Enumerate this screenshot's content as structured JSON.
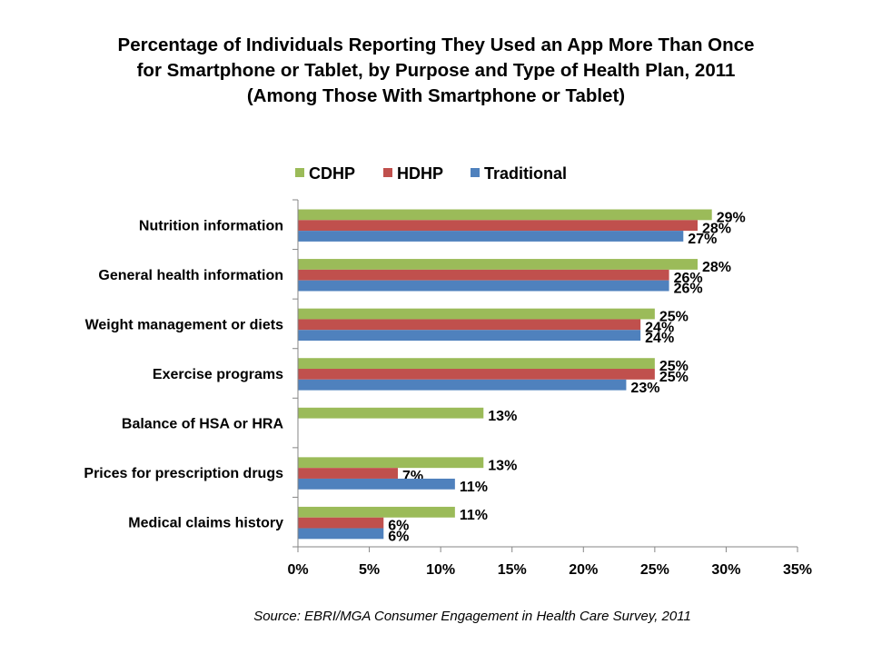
{
  "title_lines": [
    "Percentage of Individuals Reporting They Used an App More Than Once",
    "for Smartphone or Tablet, by Purpose and Type of Health Plan, 2011",
    "(Among Those With Smartphone or Tablet)"
  ],
  "source": "Source: EBRI/MGA Consumer Engagement in Health Care Survey, 2011",
  "colors": {
    "CDHP": "#9bbb59",
    "HDHP": "#c0504d",
    "Traditional": "#4f81bd"
  },
  "chart_data": {
    "type": "bar",
    "orientation": "horizontal",
    "title": "Percentage of Individuals Reporting They Used an App More Than Once for Smartphone or Tablet, by Purpose and Type of Health Plan, 2011 (Among Those With Smartphone or Tablet)",
    "categories": [
      "Nutrition information",
      "General health information",
      "Weight management or diets",
      "Exercise programs",
      "Balance of HSA or HRA",
      "Prices for prescription drugs",
      "Medical claims history"
    ],
    "series": [
      {
        "name": "CDHP",
        "values": [
          29,
          28,
          25,
          25,
          13,
          13,
          11
        ],
        "labels": [
          "29%",
          "28%",
          "25%",
          "25%",
          "13%",
          "13%",
          "11%"
        ]
      },
      {
        "name": "HDHP",
        "values": [
          28,
          26,
          24,
          25,
          null,
          7,
          6
        ],
        "labels": [
          "28%",
          "26%",
          "24%",
          "25%",
          "",
          "7%",
          "6%"
        ]
      },
      {
        "name": "Traditional",
        "values": [
          27,
          26,
          24,
          23,
          null,
          11,
          6
        ],
        "labels": [
          "27%",
          "26%",
          "24%",
          "23%",
          "",
          "11%",
          "6%"
        ]
      }
    ],
    "xlim": [
      0,
      35
    ],
    "xticks": [
      0,
      5,
      10,
      15,
      20,
      25,
      30,
      35
    ],
    "xtick_labels": [
      "0%",
      "5%",
      "10%",
      "15%",
      "20%",
      "25%",
      "30%",
      "35%"
    ],
    "xlabel": "",
    "ylabel": "",
    "legend": [
      "CDHP",
      "HDHP",
      "Traditional"
    ],
    "legend_position": "top",
    "grid": false
  }
}
